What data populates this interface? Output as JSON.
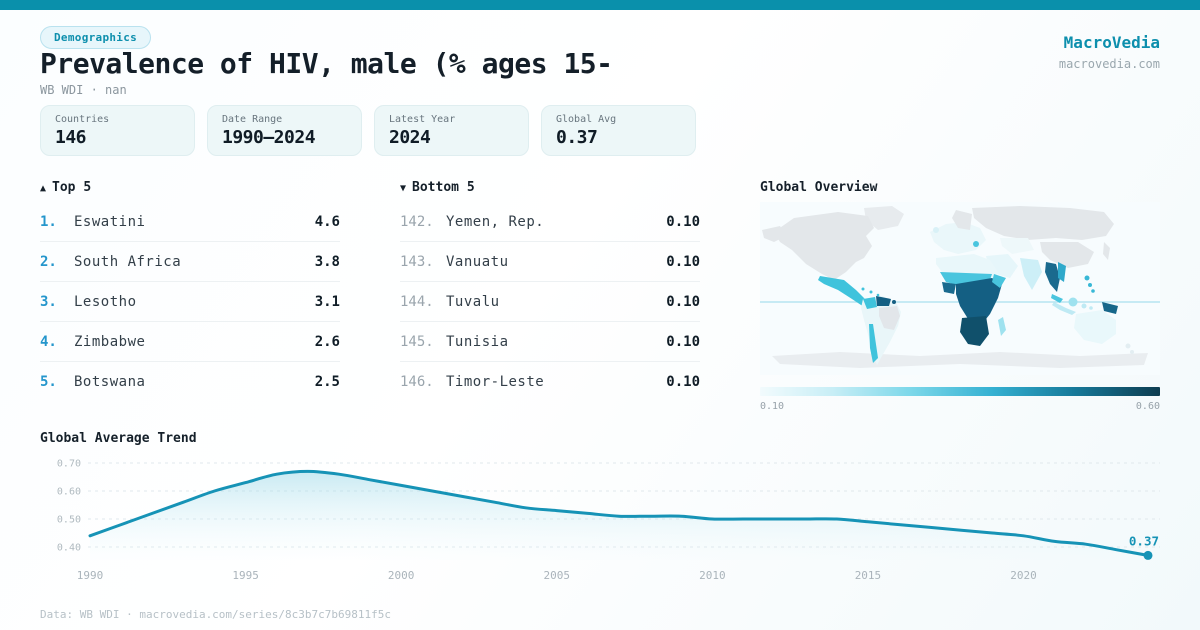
{
  "header": {
    "badge": "Demographics",
    "title": "Prevalence of HIV, male (% ages 15-",
    "subtitle": "WB WDI · nan",
    "brand": "MacroVedia",
    "brand_url": "macrovedia.com"
  },
  "stats": [
    {
      "label": "Countries",
      "value": "146"
    },
    {
      "label": "Date Range",
      "value": "1990—2024"
    },
    {
      "label": "Latest Year",
      "value": "2024"
    },
    {
      "label": "Global Avg",
      "value": "0.37"
    }
  ],
  "top5": {
    "arrow": "▲",
    "header": "Top 5",
    "items": [
      {
        "rank": "1.",
        "name": "Eswatini",
        "value": "4.6"
      },
      {
        "rank": "2.",
        "name": "South Africa",
        "value": "3.8"
      },
      {
        "rank": "3.",
        "name": "Lesotho",
        "value": "3.1"
      },
      {
        "rank": "4.",
        "name": "Zimbabwe",
        "value": "2.6"
      },
      {
        "rank": "5.",
        "name": "Botswana",
        "value": "2.5"
      }
    ]
  },
  "bottom5": {
    "arrow": "▼",
    "header": "Bottom 5",
    "items": [
      {
        "rank": "142.",
        "name": "Yemen, Rep.",
        "value": "0.10"
      },
      {
        "rank": "143.",
        "name": "Vanuatu",
        "value": "0.10"
      },
      {
        "rank": "144.",
        "name": "Tuvalu",
        "value": "0.10"
      },
      {
        "rank": "145.",
        "name": "Tunisia",
        "value": "0.10"
      },
      {
        "rank": "146.",
        "name": "Timor-Leste",
        "value": "0.10"
      }
    ]
  },
  "map": {
    "title": "Global Overview",
    "scale_min": "0.10",
    "scale_max": "0.60",
    "colors": {
      "no_data": "#e3e7ea",
      "low": "#e9f7fa",
      "mid": "#49c5de",
      "high": "#145f83",
      "highest": "#10506b"
    }
  },
  "chart_data": {
    "type": "line",
    "title": "Global Average Trend",
    "x": [
      1990,
      1991,
      1992,
      1993,
      1994,
      1995,
      1996,
      1997,
      1998,
      1999,
      2000,
      2001,
      2002,
      2003,
      2004,
      2005,
      2006,
      2007,
      2008,
      2009,
      2010,
      2011,
      2012,
      2013,
      2014,
      2015,
      2016,
      2017,
      2018,
      2019,
      2020,
      2021,
      2022,
      2023,
      2024
    ],
    "values": [
      0.44,
      0.48,
      0.52,
      0.56,
      0.6,
      0.63,
      0.66,
      0.67,
      0.66,
      0.64,
      0.62,
      0.6,
      0.58,
      0.56,
      0.54,
      0.53,
      0.52,
      0.51,
      0.51,
      0.51,
      0.5,
      0.5,
      0.5,
      0.5,
      0.5,
      0.49,
      0.48,
      0.47,
      0.46,
      0.45,
      0.44,
      0.42,
      0.41,
      0.39,
      0.37
    ],
    "y_ticks": [
      "0.70",
      "0.60",
      "0.50",
      "0.40"
    ],
    "y_tick_values": [
      0.7,
      0.6,
      0.5,
      0.4
    ],
    "x_ticks": [
      "1990",
      "1995",
      "2000",
      "2005",
      "2010",
      "2015",
      "2020"
    ],
    "x_tick_values": [
      1990,
      1995,
      2000,
      2005,
      2010,
      2015,
      2020
    ],
    "ylim": [
      0.4,
      0.7
    ],
    "end_label": "0.37",
    "line_color": "#1693b6",
    "grid": true,
    "xlabel": "",
    "ylabel": ""
  },
  "footer": "Data: WB WDI · macrovedia.com/series/8c3b7c7b69811f5c"
}
